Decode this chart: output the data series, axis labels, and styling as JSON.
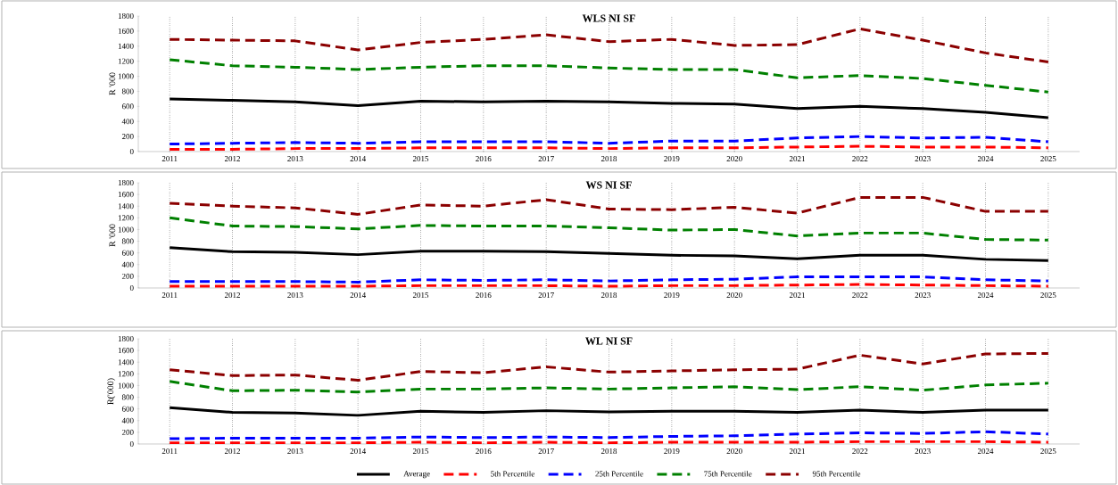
{
  "chart_data": [
    {
      "type": "line",
      "title": "WLS NI SF",
      "ylabel": "R '000",
      "categories": [
        "2011",
        "2012",
        "2013",
        "2014",
        "2015",
        "2016",
        "2017",
        "2018",
        "2019",
        "2020",
        "2021",
        "2022",
        "2023",
        "2024",
        "2025"
      ],
      "ylim": [
        0,
        1800
      ],
      "yticks": [
        0,
        200,
        400,
        600,
        800,
        1000,
        1200,
        1400,
        1600,
        1800
      ],
      "grid": "x",
      "legend": false,
      "marker": "none",
      "tick_labels": "xy",
      "series": [
        {
          "color": "#000000",
          "line_style": "solid",
          "values": [
            700,
            680,
            660,
            610,
            670,
            660,
            670,
            660,
            640,
            630,
            570,
            600,
            570,
            520,
            450
          ]
        },
        {
          "color": "#ff0000",
          "line_style": "dashed",
          "values": [
            30,
            30,
            40,
            40,
            50,
            50,
            50,
            40,
            50,
            50,
            60,
            70,
            60,
            60,
            50
          ]
        },
        {
          "color": "#0000ff",
          "line_style": "dashed",
          "values": [
            100,
            110,
            120,
            110,
            130,
            130,
            130,
            110,
            140,
            140,
            180,
            200,
            180,
            190,
            130
          ]
        },
        {
          "color": "#008000",
          "line_style": "dashed",
          "values": [
            1220,
            1140,
            1120,
            1090,
            1120,
            1140,
            1140,
            1110,
            1090,
            1090,
            980,
            1010,
            970,
            880,
            790
          ]
        },
        {
          "color": "#8b0000",
          "line_style": "dashed",
          "values": [
            1490,
            1480,
            1470,
            1350,
            1450,
            1490,
            1550,
            1460,
            1490,
            1410,
            1420,
            1630,
            1480,
            1310,
            1190
          ]
        }
      ]
    },
    {
      "type": "line",
      "title": "WS NI SF",
      "ylabel": "R '000",
      "categories": [
        "2011",
        "2012",
        "2013",
        "2014",
        "2015",
        "2016",
        "2017",
        "2018",
        "2019",
        "2020",
        "2021",
        "2022",
        "2023",
        "2024",
        "2025"
      ],
      "ylim": [
        0,
        1800
      ],
      "yticks": [
        0,
        200,
        400,
        600,
        800,
        1000,
        1200,
        1400,
        1600,
        1800
      ],
      "grid": "x",
      "legend": false,
      "marker": "none",
      "series": [
        {
          "color": "#000000",
          "line_style": "solid",
          "values": [
            690,
            620,
            610,
            570,
            630,
            630,
            620,
            590,
            560,
            550,
            500,
            560,
            560,
            490,
            470
          ]
        },
        {
          "color": "#ff0000",
          "line_style": "dashed",
          "values": [
            30,
            30,
            30,
            30,
            40,
            40,
            40,
            30,
            40,
            40,
            50,
            60,
            50,
            40,
            30
          ]
        },
        {
          "color": "#0000ff",
          "line_style": "dashed",
          "values": [
            110,
            110,
            110,
            100,
            140,
            130,
            140,
            120,
            140,
            150,
            190,
            190,
            190,
            140,
            120
          ]
        },
        {
          "color": "#008000",
          "line_style": "dashed",
          "values": [
            1200,
            1060,
            1050,
            1010,
            1070,
            1060,
            1060,
            1030,
            990,
            1000,
            890,
            940,
            940,
            830,
            820
          ]
        },
        {
          "color": "#8b0000",
          "line_style": "dashed",
          "values": [
            1450,
            1400,
            1370,
            1260,
            1420,
            1400,
            1510,
            1350,
            1340,
            1380,
            1280,
            1550,
            1550,
            1310,
            1310
          ]
        }
      ]
    },
    {
      "type": "line",
      "title": "WL NI SF",
      "ylabel": "R('000)",
      "categories": [
        "2011",
        "2012",
        "2013",
        "2014",
        "2015",
        "2016",
        "2017",
        "2018",
        "2019",
        "2020",
        "2021",
        "2022",
        "2023",
        "2024",
        "2025"
      ],
      "ylim": [
        0,
        1800
      ],
      "yticks": [
        0,
        200,
        400,
        600,
        800,
        1000,
        1200,
        1400,
        1600,
        1800
      ],
      "grid": "x",
      "legend": "bottom",
      "marker": "none",
      "series": [
        {
          "name": "Average",
          "color": "#000000",
          "line_style": "solid",
          "values": [
            620,
            540,
            530,
            490,
            560,
            540,
            570,
            550,
            560,
            560,
            540,
            580,
            540,
            580,
            580
          ]
        },
        {
          "name": "5th Percentile",
          "color": "#ff0000",
          "line_style": "dashed",
          "values": [
            20,
            20,
            20,
            20,
            30,
            20,
            30,
            20,
            30,
            30,
            30,
            40,
            40,
            40,
            30
          ]
        },
        {
          "name": "25th Percentile",
          "color": "#0000ff",
          "line_style": "dashed",
          "values": [
            90,
            100,
            100,
            100,
            120,
            110,
            120,
            110,
            130,
            140,
            170,
            190,
            180,
            210,
            170
          ]
        },
        {
          "name": "75th Percentile",
          "color": "#008000",
          "line_style": "dashed",
          "values": [
            1070,
            910,
            920,
            890,
            940,
            940,
            960,
            940,
            960,
            980,
            930,
            980,
            920,
            1010,
            1040
          ]
        },
        {
          "name": "95th Percentile",
          "color": "#8b0000",
          "line_style": "dashed",
          "values": [
            1270,
            1170,
            1180,
            1090,
            1240,
            1220,
            1320,
            1230,
            1250,
            1270,
            1280,
            1520,
            1370,
            1540,
            1550
          ]
        }
      ]
    }
  ]
}
